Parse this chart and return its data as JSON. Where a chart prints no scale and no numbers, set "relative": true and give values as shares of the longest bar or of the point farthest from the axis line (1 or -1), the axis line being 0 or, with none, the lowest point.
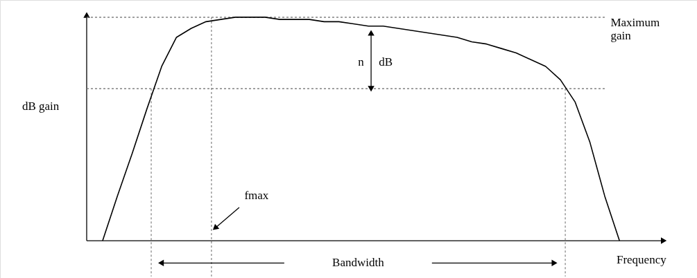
{
  "chart_data": {
    "type": "line",
    "relative": true,
    "color": "#000000",
    "line_style": "solid",
    "marker": "none",
    "ylabel": "dB gain",
    "xlabel": "Frequency",
    "categories": [
      null,
      null,
      null,
      null,
      null,
      null,
      null,
      null,
      null,
      null,
      null,
      null,
      null,
      null,
      null,
      null,
      null,
      null,
      null,
      null,
      null,
      null,
      null,
      null,
      null,
      null,
      null,
      null,
      null,
      null,
      null,
      null,
      null,
      null,
      null,
      null,
      null,
      null,
      null,
      null
    ],
    "values": [
      null,
      0,
      0.2,
      0.39,
      0.59,
      0.78,
      0.91,
      0.95,
      0.98,
      0.99,
      1,
      1,
      1,
      0.99,
      0.99,
      0.99,
      0.98,
      0.98,
      0.97,
      0.96,
      0.96,
      0.95,
      0.94,
      0.93,
      0.92,
      0.91,
      0.89,
      0.88,
      0.86,
      0.84,
      0.81,
      0.78,
      0.72,
      0.62,
      0.44,
      0.2,
      0,
      null,
      null,
      null
    ],
    "ref_lines": [
      {
        "axis": "y",
        "value": 1,
        "label": "Maximum gain",
        "line_style": "dotted",
        "color": "#808080"
      },
      {
        "axis": "y",
        "value": 0.68,
        "line_style": "dotted",
        "color": "#808080"
      }
    ],
    "annotations": [
      "n dB",
      "fmax",
      "Bandwidth"
    ]
  }
}
